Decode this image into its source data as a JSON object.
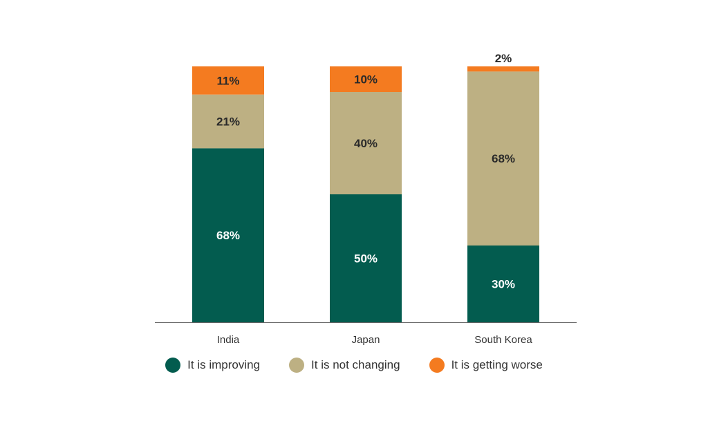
{
  "chart_data": {
    "type": "bar",
    "stacked": true,
    "categories": [
      "India",
      "Japan",
      "South Korea"
    ],
    "series": [
      {
        "name": "It is improving",
        "values": [
          68,
          50,
          30
        ],
        "color": "#035C4F",
        "label_color": "#FFFFFF"
      },
      {
        "name": "It is not changing",
        "values": [
          21,
          40,
          68
        ],
        "color": "#BDB083",
        "label_color": "#2A2A2A"
      },
      {
        "name": "It is getting worse",
        "values": [
          11,
          10,
          2
        ],
        "color": "#F47B20",
        "label_color": "#2A2A2A"
      }
    ],
    "value_suffix": "%",
    "ylim": [
      0,
      100
    ],
    "grid": false,
    "legend_position": "bottom",
    "axis_color": "#666666"
  }
}
